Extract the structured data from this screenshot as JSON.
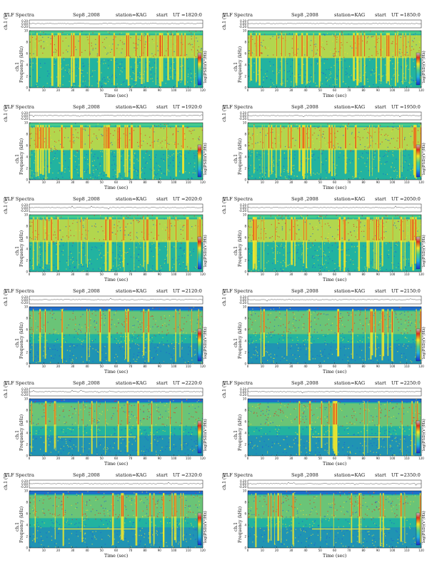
{
  "figure": {
    "header_title": "VLF Spectra",
    "header_date": "Sep8 ,2008",
    "header_station": "station=KAG",
    "header_start_label": "start",
    "x_axis_label": "Time (sec)",
    "y_axis_label": "Frequency (kHz)",
    "ch1_label": "ch.1 (V)",
    "ch_label_lower": "ch.1",
    "colorbar_label": "log(PSD)(V²/Hz)",
    "colorbar_ticks": [
      "-",
      "-"
    ]
  },
  "panels": [
    {
      "ut": "UT =1820:0"
    },
    {
      "ut": "UT =1850:0"
    },
    {
      "ut": "UT =1920:0"
    },
    {
      "ut": "UT =1950:0"
    },
    {
      "ut": "UT =2020:0"
    },
    {
      "ut": "UT =2050:0"
    },
    {
      "ut": "UT =2120:0"
    },
    {
      "ut": "UT =2150:0"
    },
    {
      "ut": "UT =2220:0"
    },
    {
      "ut": "UT =2250:0"
    },
    {
      "ut": "UT =2320:0"
    },
    {
      "ut": "UT =2350:0"
    }
  ],
  "chart_data": {
    "type": "heatmap",
    "title": "VLF Spectra",
    "xlabel": "Time (sec)",
    "ylabel": "Frequency (kHz)",
    "xlim": [
      0,
      120
    ],
    "ylim": [
      0,
      10
    ],
    "x_ticks": [
      0,
      10,
      20,
      30,
      40,
      50,
      60,
      70,
      80,
      90,
      100,
      110,
      120
    ],
    "y_ticks": [
      0,
      2,
      4,
      6,
      8,
      10
    ],
    "ch1_ticks": [
      "0.20",
      "0.00",
      "-0.20"
    ],
    "colors": {
      "background": "#22b3a0",
      "low": "#1e5bd6",
      "mid": "#4cd08a",
      "high_band": "#f0e62b",
      "peak": "#e0301e"
    }
  }
}
